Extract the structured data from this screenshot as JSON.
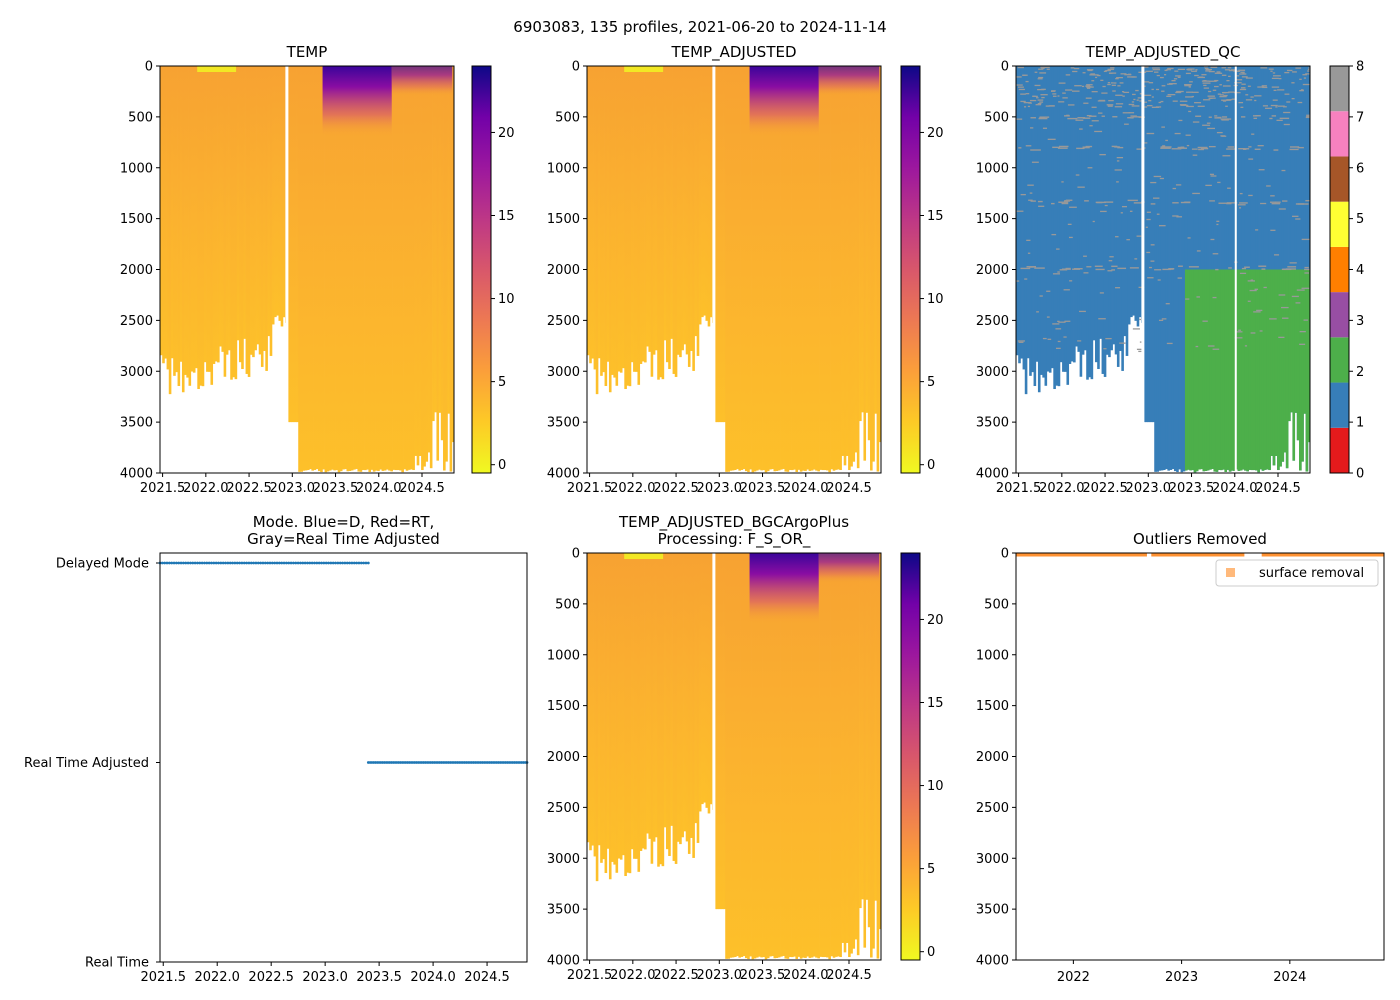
{
  "suptitle": "6903083, 135 profiles, 2021-06-20 to 2024-11-14",
  "colors": {
    "qc_cmap": [
      "#e41a1c",
      "#377eb8",
      "#4daf4a",
      "#984ea3",
      "#ff7f00",
      "#ffff33",
      "#a65628",
      "#f781bf",
      "#999999"
    ],
    "marker": "#1f77b4",
    "outlier": "#ff7f0e"
  },
  "chart_data": [
    {
      "id": "temp",
      "type": "heatmap",
      "title": "TEMP",
      "x_range": [
        2021.47,
        2024.87
      ],
      "y_range": [
        4000,
        0
      ],
      "x_ticks": [
        "2021.5",
        "2022.0",
        "2022.5",
        "2023.0",
        "2023.5",
        "2024.0",
        "2024.5"
      ],
      "y_ticks": [
        "0",
        "500",
        "1000",
        "1500",
        "2000",
        "2500",
        "3000",
        "3500",
        "4000"
      ],
      "colorbar": {
        "label": "",
        "range": [
          -0.5,
          24
        ],
        "ticks": [
          "0",
          "5",
          "10",
          "15",
          "20"
        ],
        "cmap": "plasma_r"
      },
      "data_gap_year": 2022.92,
      "warm_surface_years": [
        [
          2023.35,
          2024.15
        ]
      ]
    },
    {
      "id": "temp_adj",
      "type": "heatmap",
      "title": "TEMP_ADJUSTED",
      "x_range": [
        2021.47,
        2024.87
      ],
      "y_range": [
        4000,
        0
      ],
      "x_ticks": [
        "2021.5",
        "2022.0",
        "2022.5",
        "2023.0",
        "2023.5",
        "2024.0",
        "2024.5"
      ],
      "y_ticks": [
        "0",
        "500",
        "1000",
        "1500",
        "2000",
        "2500",
        "3000",
        "3500",
        "4000"
      ],
      "colorbar": {
        "label": "",
        "range": [
          -0.5,
          24
        ],
        "ticks": [
          "0",
          "5",
          "10",
          "15",
          "20"
        ],
        "cmap": "plasma_r"
      },
      "data_gap_year": 2022.92
    },
    {
      "id": "qc",
      "type": "heatmap",
      "title": "TEMP_ADJUSTED_QC",
      "x_range": [
        2021.47,
        2024.87
      ],
      "y_range": [
        4000,
        0
      ],
      "x_ticks": [
        "2021.5",
        "2022.0",
        "2022.5",
        "2023.0",
        "2023.5",
        "2024.0",
        "2024.5"
      ],
      "y_ticks": [
        "0",
        "500",
        "1000",
        "1500",
        "2000",
        "2500",
        "3000",
        "3500",
        "4000"
      ],
      "colorbar": {
        "label": "",
        "range": [
          0,
          8
        ],
        "ticks": [
          "0",
          "1",
          "2",
          "3",
          "4",
          "5",
          "6",
          "7",
          "8"
        ],
        "cmap": "qc"
      },
      "qc_regions": [
        {
          "flag": 1,
          "years": [
            2021.47,
            2024.87
          ],
          "depth": [
            0,
            4000
          ]
        },
        {
          "flag": 2,
          "years": [
            2023.4,
            2024.87
          ],
          "depth": [
            2000,
            4000
          ]
        }
      ],
      "qc_flag_scatter": 8
    },
    {
      "id": "mode",
      "type": "scatter",
      "title": "Mode. Blue=D, Red=RT,",
      "title2": "Gray=Real Time Adjusted",
      "x_range": [
        2021.47,
        2024.87
      ],
      "x_ticks": [
        "2021.5",
        "2022.0",
        "2022.5",
        "2023.0",
        "2023.5",
        "2024.0",
        "2024.5"
      ],
      "y_categories": [
        "Real Time",
        "Real Time Adjusted",
        "Delayed Mode"
      ],
      "series": [
        {
          "name": "Delayed Mode",
          "x_range": [
            2021.47,
            2023.4
          ],
          "y": "Delayed Mode"
        },
        {
          "name": "Real Time Adjusted",
          "x_range": [
            2023.4,
            2024.87
          ],
          "y": "Real Time Adjusted"
        }
      ]
    },
    {
      "id": "bgc",
      "type": "heatmap",
      "title": "TEMP_ADJUSTED_BGCArgoPlus",
      "title2": "Processing: F_S_OR_",
      "x_range": [
        2021.47,
        2024.87
      ],
      "y_range": [
        4000,
        0
      ],
      "x_ticks": [
        "2021.5",
        "2022.0",
        "2022.5",
        "2023.0",
        "2023.5",
        "2024.0",
        "2024.5"
      ],
      "y_ticks": [
        "0",
        "500",
        "1000",
        "1500",
        "2000",
        "2500",
        "3000",
        "3500",
        "4000"
      ],
      "colorbar": {
        "label": "",
        "range": [
          -0.5,
          24
        ],
        "ticks": [
          "0",
          "5",
          "10",
          "15",
          "20"
        ],
        "cmap": "plasma_r"
      },
      "data_gap_year": 2022.92
    },
    {
      "id": "outliers",
      "type": "scatter",
      "title": "Outliers Removed",
      "x_range": [
        2021.47,
        2024.87
      ],
      "y_range": [
        4000,
        0
      ],
      "x_ticks": [
        "2022",
        "2023",
        "2024"
      ],
      "y_ticks": [
        "0",
        "500",
        "1000",
        "1500",
        "2000",
        "2500",
        "3000",
        "3500",
        "4000"
      ],
      "legend": {
        "label": "surface removal",
        "placement": "top-right"
      },
      "series": [
        {
          "name": "surface removal",
          "depth_range": [
            0,
            8
          ],
          "x_range": [
            2021.47,
            2024.87
          ],
          "gaps": [
            [
              2022.68,
              2022.72
            ],
            [
              2023.58,
              2023.74
            ]
          ]
        }
      ]
    }
  ]
}
